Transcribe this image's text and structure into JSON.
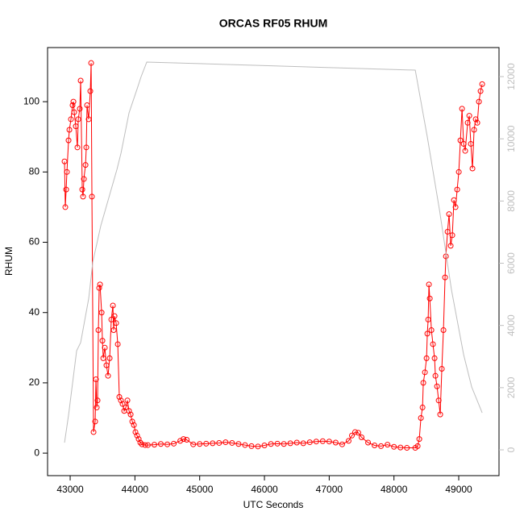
{
  "chart_data": {
    "type": "line",
    "title": "ORCAS RF05 RHUM",
    "xlabel": "UTC Seconds",
    "ylabel": "RHUM",
    "xlim": [
      42651,
      49622
    ],
    "ylim": [
      -6.4,
      115.4
    ],
    "y2lim": [
      -829,
      12934
    ],
    "xticks": [
      43000,
      44000,
      45000,
      46000,
      47000,
      48000,
      49000
    ],
    "yticks": [
      0,
      20,
      40,
      60,
      80,
      100
    ],
    "y2ticks": [
      0,
      2000,
      4000,
      6000,
      8000,
      10000,
      12000
    ],
    "series": [
      {
        "color": "#ff0000",
        "marker": "circle",
        "x": [
          42913,
          42925,
          42938,
          42950,
          42975,
          42988,
          43012,
          43037,
          43050,
          43062,
          43087,
          43112,
          43125,
          43149,
          43162,
          43187,
          43199,
          43212,
          43237,
          43249,
          43261,
          43286,
          43311,
          43324,
          43336,
          43361,
          43386,
          43398,
          43411,
          43423,
          43436,
          43448,
          43461,
          43486,
          43498,
          43511,
          43535,
          43560,
          43585,
          43610,
          43635,
          43660,
          43672,
          43685,
          43710,
          43735,
          43759,
          43784,
          43809,
          43834,
          43859,
          43884,
          43909,
          43934,
          43959,
          43984,
          44008,
          44033,
          44058,
          44083,
          44108,
          44158,
          44200,
          44300,
          44400,
          44500,
          44600,
          44700,
          44750,
          44800,
          44900,
          45000,
          45100,
          45200,
          45300,
          45400,
          45500,
          45600,
          45700,
          45800,
          45900,
          46000,
          46100,
          46200,
          46300,
          46400,
          46500,
          46600,
          46700,
          46800,
          46900,
          47000,
          47100,
          47200,
          47300,
          47350,
          47400,
          47450,
          47500,
          47600,
          47700,
          47800,
          47900,
          48000,
          48100,
          48200,
          48329,
          48366,
          48391,
          48416,
          48441,
          48453,
          48478,
          48503,
          48515,
          48528,
          48540,
          48553,
          48578,
          48602,
          48627,
          48640,
          48665,
          48690,
          48714,
          48739,
          48764,
          48789,
          48802,
          48827,
          48851,
          48876,
          48901,
          48926,
          48951,
          48976,
          49001,
          49026,
          49051,
          49076,
          49100,
          49138,
          49163,
          49187,
          49212,
          49237,
          49262,
          49287,
          49312,
          49337,
          49362
        ],
        "values": [
          83,
          70,
          75,
          80,
          89,
          92,
          95,
          99,
          100,
          97,
          93,
          87,
          95,
          98,
          106,
          75,
          73,
          78,
          82,
          87,
          99,
          95,
          103,
          111,
          73,
          6,
          9,
          21,
          13,
          15,
          35,
          47,
          48,
          40,
          32,
          27,
          30,
          25,
          22,
          27,
          38,
          42,
          35,
          39,
          37,
          31,
          16,
          15,
          14,
          12,
          13,
          15,
          12,
          11,
          9,
          8,
          6,
          5,
          4,
          3,
          2.5,
          2.3,
          2.3,
          2.4,
          2.6,
          2.5,
          2.7,
          3.5,
          4.0,
          3.8,
          2.5,
          2.6,
          2.7,
          2.8,
          2.9,
          3.1,
          2.9,
          2.6,
          2.3,
          2.0,
          1.9,
          2.2,
          2.6,
          2.7,
          2.6,
          2.8,
          3.0,
          2.8,
          3.1,
          3.3,
          3.4,
          3.3,
          3.0,
          2.5,
          3.5,
          5.0,
          6.0,
          5.8,
          4.5,
          3.0,
          2.2,
          2.0,
          2.4,
          1.8,
          1.6,
          1.5,
          1.5,
          2,
          4,
          10,
          13,
          20,
          23,
          27,
          34,
          38,
          48,
          44,
          35,
          31,
          27,
          22,
          19,
          15,
          11,
          24,
          35,
          50,
          56,
          63,
          68,
          59,
          62,
          72,
          70,
          75,
          80,
          89,
          98,
          88,
          86,
          94,
          96,
          88,
          81,
          92,
          95,
          94,
          100,
          103,
          105
        ]
      },
      {
        "color": "#bebebe",
        "axis": "y2",
        "x": [
          42913,
          42975,
          43100,
          43162,
          43287,
          43349,
          43473,
          43598,
          43723,
          43785,
          43909,
          44033,
          44096,
          44183,
          48329,
          48515,
          48702,
          48889,
          49076,
          49200,
          49362
        ],
        "values": [
          233,
          1115,
          3188,
          3447,
          4873,
          6039,
          7206,
          8113,
          9020,
          9539,
          10835,
          11600,
          12001,
          12468,
          12208,
          10057,
          7724,
          5132,
          3059,
          2022,
          1192
        ]
      }
    ]
  }
}
